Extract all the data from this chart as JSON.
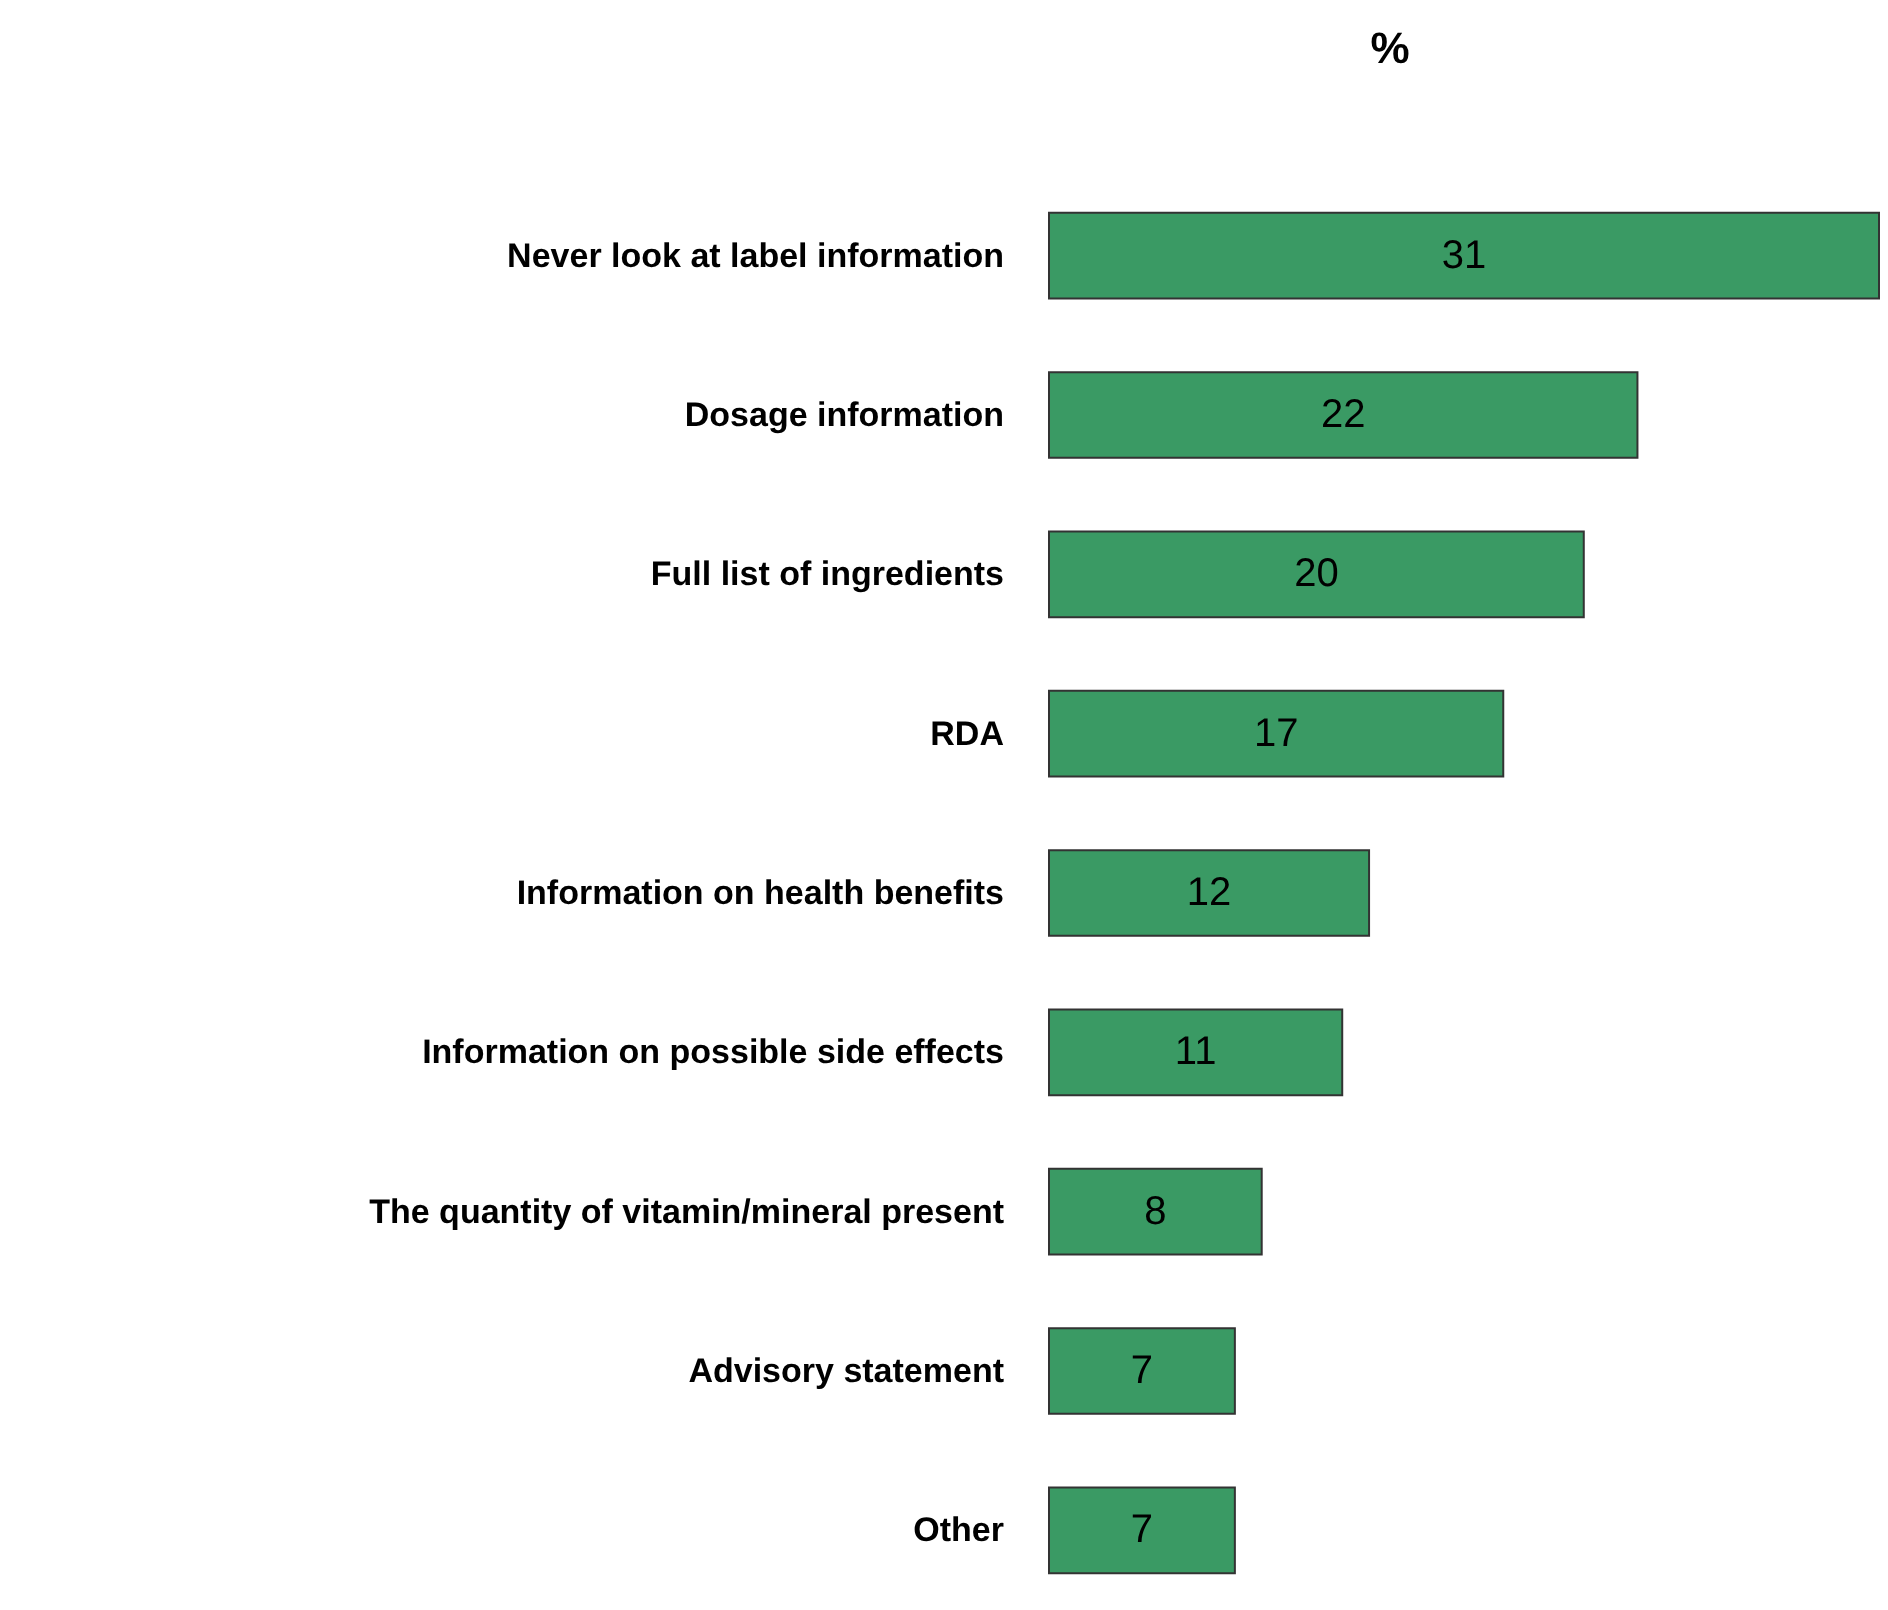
{
  "chart_data": {
    "type": "bar",
    "orientation": "horizontal",
    "title": "%",
    "categories": [
      "Never look at label information",
      "Dosage information",
      "Full list of ingredients",
      "RDA",
      "Information on health benefits",
      "Information on possible side effects",
      "The quantity of vitamin/mineral present",
      "Advisory statement",
      "Other"
    ],
    "values": [
      31,
      22,
      20,
      17,
      12,
      11,
      8,
      7,
      7
    ],
    "color": "#3a9a64",
    "data_labels": true
  }
}
